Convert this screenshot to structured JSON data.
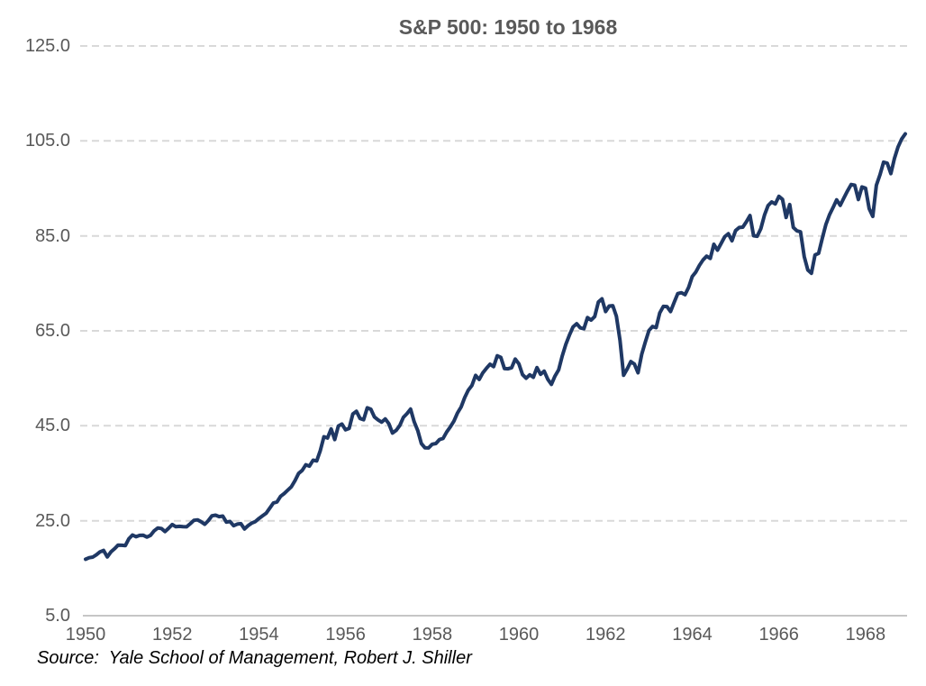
{
  "chart_data": {
    "type": "line",
    "title": "S&P 500: 1950 to 1968",
    "source": "Source:  Yale School of Management, Robert J. Shiller",
    "xlabel": "",
    "ylabel": "",
    "ylim": [
      5,
      125
    ],
    "y_ticks": [
      125,
      105,
      85,
      65,
      45,
      25,
      5
    ],
    "y_tick_labels": [
      "125.0",
      "105.0",
      "85.0",
      "65.0",
      "45.0",
      "25.0",
      "5.0"
    ],
    "x_tick_labels": [
      "1950",
      "1952",
      "1954",
      "1956",
      "1958",
      "1960",
      "1962",
      "1964",
      "1966",
      "1968"
    ],
    "x_start_year": 1950,
    "frequency": "monthly",
    "grid": "horizontal-dashed",
    "legend": "none",
    "line_color": "#1F3864",
    "grid_color": "#D9D9D9",
    "axis_color": "#C6C6C6",
    "text_color": "#595959",
    "series": [
      {
        "name": "S&P 500",
        "values": [
          16.88,
          17.21,
          17.35,
          17.84,
          18.44,
          18.74,
          17.38,
          18.43,
          19.08,
          19.87,
          19.83,
          19.75,
          21.21,
          22.0,
          21.63,
          21.92,
          21.93,
          21.55,
          21.93,
          22.89,
          23.48,
          23.36,
          22.71,
          23.41,
          24.19,
          23.75,
          23.81,
          23.74,
          23.73,
          24.38,
          25.08,
          25.18,
          24.78,
          24.26,
          25.03,
          26.04,
          26.18,
          25.86,
          25.99,
          24.71,
          24.84,
          23.95,
          24.29,
          24.39,
          23.27,
          23.97,
          24.5,
          24.83,
          25.46,
          26.02,
          26.57,
          27.63,
          28.73,
          28.96,
          30.13,
          30.73,
          31.45,
          32.18,
          33.44,
          34.97,
          35.6,
          36.79,
          36.5,
          37.76,
          37.6,
          39.78,
          42.69,
          42.43,
          44.34,
          42.11,
          44.95,
          45.37,
          44.15,
          44.43,
          47.49,
          48.05,
          46.54,
          46.27,
          48.78,
          48.49,
          46.84,
          46.24,
          45.76,
          46.44,
          45.43,
          43.47,
          44.03,
          45.05,
          46.78,
          47.55,
          48.51,
          45.84,
          43.98,
          41.24,
          40.35,
          40.33,
          41.12,
          41.26,
          42.11,
          42.34,
          43.7,
          44.75,
          45.98,
          47.7,
          48.96,
          50.95,
          52.5,
          53.49,
          55.62,
          54.77,
          56.15,
          57.1,
          57.96,
          57.46,
          59.74,
          59.4,
          57.05,
          57.0,
          57.23,
          59.06,
          58.03,
          55.78,
          55.02,
          55.73,
          55.22,
          57.26,
          55.84,
          56.51,
          54.81,
          53.73,
          55.47,
          56.8,
          59.72,
          62.17,
          64.12,
          65.83,
          66.5,
          65.62,
          65.44,
          67.79,
          67.26,
          68.0,
          71.08,
          71.74,
          69.07,
          70.22,
          70.29,
          68.05,
          62.99,
          55.63,
          56.97,
          58.52,
          58.0,
          56.17,
          60.04,
          62.64,
          65.06,
          65.92,
          65.67,
          68.76,
          70.14,
          70.11,
          69.07,
          70.98,
          72.85,
          73.03,
          72.62,
          74.17,
          76.45,
          77.39,
          78.8,
          79.94,
          80.72,
          80.24,
          83.22,
          82.0,
          83.41,
          84.85,
          85.44,
          83.96,
          86.12,
          86.75,
          86.83,
          87.97,
          89.28,
          85.04,
          84.91,
          86.49,
          89.38,
          91.39,
          92.15,
          91.73,
          93.32,
          92.69,
          88.88,
          91.6,
          86.78,
          86.06,
          85.84,
          80.65,
          77.81,
          77.13,
          80.99,
          81.33,
          84.45,
          87.36,
          89.42,
          90.96,
          92.59,
          91.43,
          93.01,
          94.49,
          95.81,
          95.66,
          92.66,
          95.3,
          95.04,
          90.75,
          89.09,
          95.67,
          97.87,
          100.53,
          100.3,
          98.11,
          101.34,
          103.76,
          105.4,
          106.48
        ]
      }
    ]
  }
}
